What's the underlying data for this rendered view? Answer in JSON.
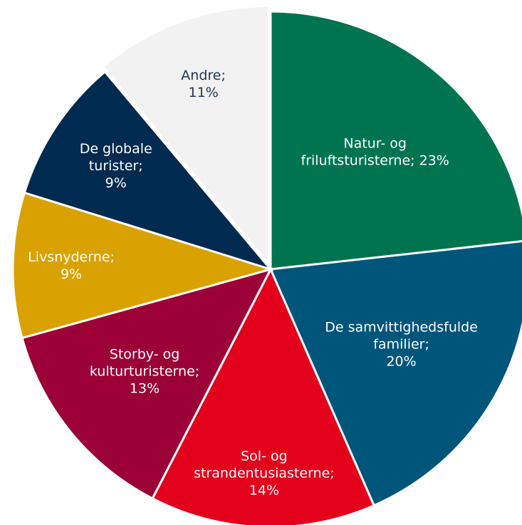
{
  "chart_data": {
    "type": "pie",
    "labels": [
      [
        "Natur- og",
        "friluftsturisterne; 23%"
      ],
      [
        "De samvittighedsfulde",
        "familier;",
        "20%"
      ],
      [
        "Sol- og",
        "strandentusiasterne;",
        "14%"
      ],
      [
        "Storby- og",
        "kulturturisterne;",
        "13%"
      ],
      [
        "Livsnyderne;",
        "9%"
      ],
      [
        "De globale",
        "turister;",
        "9%"
      ],
      [
        "Andre;",
        "11%"
      ]
    ],
    "values": [
      23,
      20,
      14,
      13,
      9,
      9,
      11
    ],
    "colors": [
      "#00744f",
      "#00557a",
      "#e3001b",
      "#9b0036",
      "#d9a200",
      "#002a4f",
      "#f2f2f2"
    ],
    "label_colors": [
      "#ffffff",
      "#ffffff",
      "#ffffff",
      "#ffffff",
      "#ffffff",
      "#ffffff",
      "#1f3554"
    ]
  }
}
